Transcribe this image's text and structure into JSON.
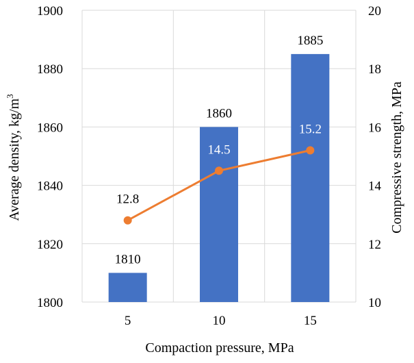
{
  "chart_data": {
    "type": "bar",
    "combo": "bar+line",
    "categories": [
      "5",
      "10",
      "15"
    ],
    "xlabel": "Compaction pressure, MPa",
    "ylabel_left_base": "Average density, kg/m",
    "ylabel_left_sup": "3",
    "ylabel_right": "Compressive strength, MPa",
    "ylim_left": [
      1800,
      1900
    ],
    "ylim_right": [
      10,
      20
    ],
    "yticks_left": [
      "1800",
      "1820",
      "1840",
      "1860",
      "1880",
      "1900"
    ],
    "yticks_right": [
      "10",
      "12",
      "14",
      "16",
      "18",
      "20"
    ],
    "grid": true,
    "series": [
      {
        "kind": "bar",
        "axis": "left",
        "values": [
          1810,
          1860,
          1885
        ],
        "labels": [
          "1810",
          "1860",
          "1885"
        ],
        "color": "#4472C4"
      },
      {
        "kind": "line",
        "axis": "right",
        "values": [
          12.8,
          14.5,
          15.2
        ],
        "labels": [
          "12.8",
          "14.5",
          "15.2"
        ],
        "color": "#ED7D31"
      }
    ]
  }
}
